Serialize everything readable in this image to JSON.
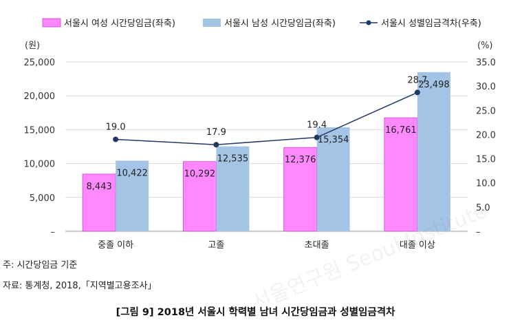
{
  "legend": {
    "female": "서울시 여성 시간당임금(좌축)",
    "male": "서울시 남성 시간당임금(좌축)",
    "gap": "서울시 성별임금격차(우축)"
  },
  "axes": {
    "left_unit": "(원)",
    "right_unit": "(%)",
    "left_ticks": [
      "–",
      "5,000",
      "10,000",
      "15,000",
      "20,000",
      "25,000"
    ],
    "right_ticks": [
      "–",
      "5.0",
      "10.0",
      "15.0",
      "20.0",
      "25.0",
      "30.0",
      "35.0"
    ]
  },
  "chart_data": {
    "type": "bar",
    "categories": [
      "중졸 이하",
      "고졸",
      "초대졸",
      "대졸 이상"
    ],
    "series": [
      {
        "name": "서울시 여성 시간당임금(좌축)",
        "values": [
          8443,
          10292,
          12376,
          16761
        ],
        "labels": [
          "8,443",
          "10,292",
          "12,376",
          "16,761"
        ],
        "axis": "left",
        "color": "#ff88ff"
      },
      {
        "name": "서울시 남성 시간당임금(좌축)",
        "values": [
          10422,
          12535,
          15354,
          23498
        ],
        "labels": [
          "10,422",
          "12,535",
          "15,354",
          "23,498"
        ],
        "axis": "left",
        "color": "#a4c4e6"
      },
      {
        "name": "서울시 성별임금격차(우축)",
        "type": "line",
        "values": [
          19.0,
          17.9,
          19.4,
          28.7
        ],
        "labels": [
          "19.0",
          "17.9",
          "19.4",
          "28.7"
        ],
        "axis": "right",
        "color": "#1f3864"
      }
    ],
    "ylim_left": [
      0,
      25000
    ],
    "ylim_right": [
      0,
      35
    ],
    "grid": true,
    "legend_position": "top"
  },
  "notes": {
    "note1": "주: 시간당임금 기준",
    "source": "자료: 통계청, 2018,「지역별고용조사」"
  },
  "caption": "[그림 9] 2018년 서울시 학력별 남녀 시간당임금과 성별임금격차"
}
